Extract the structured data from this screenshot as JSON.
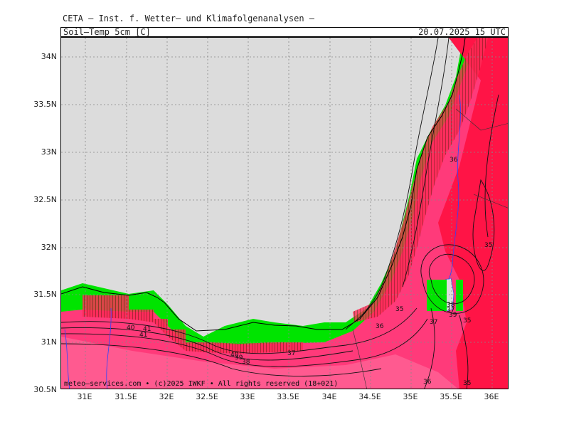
{
  "header": {
    "line": "CETA – Inst. f. Wetter– und Klimafolgenanalysen –",
    "field": "Soil–Temp_5cm_[C]",
    "valid": "20.07.2025 15 UTC"
  },
  "copyright": "meteo–services.com • (c)2025 IWKF • All rights reserved (18+021)",
  "axes": {
    "lat_labels": [
      "34N",
      "33.5N",
      "33N",
      "32.5N",
      "32N",
      "31.5N",
      "31N",
      "30.5N"
    ],
    "lon_labels": [
      "31E",
      "31.5E",
      "32E",
      "32.5E",
      "33E",
      "33.5E",
      "34E",
      "34.5E",
      "35E",
      "35.5E",
      "36E"
    ]
  },
  "contour_labels": [
    "41",
    "40",
    "39",
    "38",
    "37",
    "36",
    "35",
    "36",
    "37",
    "35",
    "35",
    "35",
    "36",
    "37",
    "38",
    "39",
    "40",
    "41"
  ],
  "colors": {
    "sea": "#dcdcdc",
    "land_green": "#00e400",
    "hot_pink": "#ff3a7a",
    "hot_red": "#ff1446",
    "hot_pale": "#ff5a90"
  }
}
